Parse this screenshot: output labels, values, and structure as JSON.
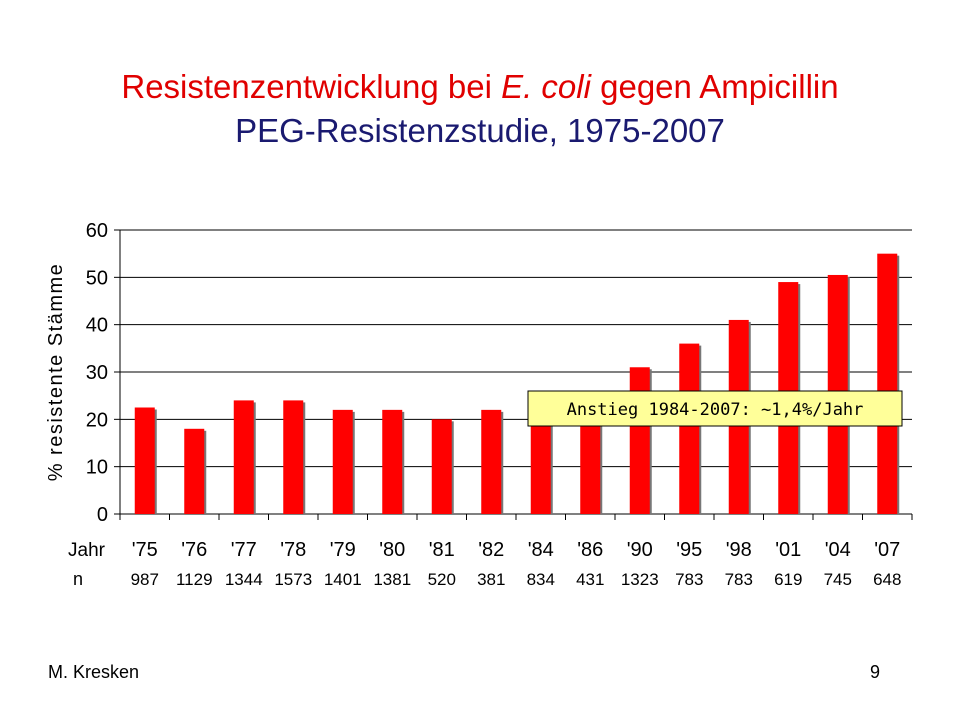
{
  "title": {
    "part1": "Resistenzentwicklung bei ",
    "italic": "E. coli",
    "part2": " gegen Ampicillin",
    "line2": "PEG-Resistenzstudie, 1975-2007"
  },
  "footer": {
    "author": "M. Kresken",
    "page_number": "9"
  },
  "chart_data": {
    "type": "bar",
    "ylabel": "% resistente Stämme",
    "ylim": [
      0,
      60
    ],
    "yticks": [
      0,
      10,
      20,
      30,
      40,
      50,
      60
    ],
    "grid": true,
    "categories": [
      "'75",
      "'76",
      "'77",
      "'78",
      "'79",
      "'80",
      "'81",
      "'82",
      "'84",
      "'86",
      "'90",
      "'95",
      "'98",
      "'01",
      "'04",
      "'07"
    ],
    "values": [
      22.5,
      18,
      24,
      24,
      22,
      22,
      20,
      22,
      25,
      22.5,
      31,
      36,
      41,
      49,
      50.5,
      55
    ],
    "row_labels": {
      "year": "Jahr",
      "n": "n"
    },
    "n_values": [
      "987",
      "1129",
      "1344",
      "1573",
      "1401",
      "1381",
      "520",
      "381",
      "834",
      "431",
      "1323",
      "783",
      "783",
      "619",
      "745",
      "648"
    ],
    "annotation": "Anstieg 1984-2007:  ~1,4%/Jahr",
    "bar_color": "#ff0000",
    "annotation_bg": "#ffff99"
  }
}
